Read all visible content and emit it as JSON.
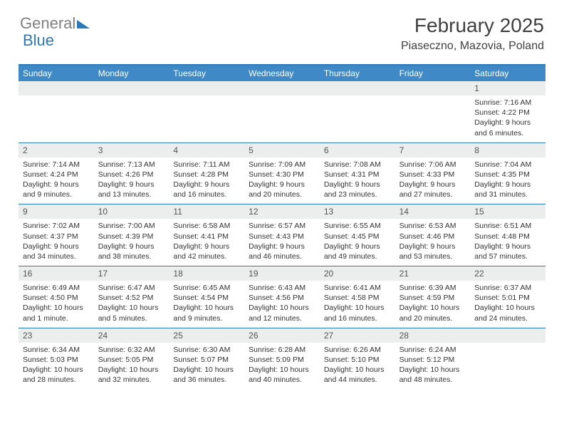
{
  "brand": {
    "part1": "General",
    "part2": "Blue"
  },
  "title": "February 2025",
  "location": "Piaseczno, Mazovia, Poland",
  "colors": {
    "header_bg": "#3f8ac6",
    "border": "#2a7ab9",
    "daynum_bg": "#eceded",
    "text": "#333333",
    "title_text": "#404040",
    "logo_gray": "#808080"
  },
  "day_headers": [
    "Sunday",
    "Monday",
    "Tuesday",
    "Wednesday",
    "Thursday",
    "Friday",
    "Saturday"
  ],
  "weeks": [
    [
      {
        "n": "",
        "t": ""
      },
      {
        "n": "",
        "t": ""
      },
      {
        "n": "",
        "t": ""
      },
      {
        "n": "",
        "t": ""
      },
      {
        "n": "",
        "t": ""
      },
      {
        "n": "",
        "t": ""
      },
      {
        "n": "1",
        "t": "Sunrise: 7:16 AM\nSunset: 4:22 PM\nDaylight: 9 hours and 6 minutes."
      }
    ],
    [
      {
        "n": "2",
        "t": "Sunrise: 7:14 AM\nSunset: 4:24 PM\nDaylight: 9 hours and 9 minutes."
      },
      {
        "n": "3",
        "t": "Sunrise: 7:13 AM\nSunset: 4:26 PM\nDaylight: 9 hours and 13 minutes."
      },
      {
        "n": "4",
        "t": "Sunrise: 7:11 AM\nSunset: 4:28 PM\nDaylight: 9 hours and 16 minutes."
      },
      {
        "n": "5",
        "t": "Sunrise: 7:09 AM\nSunset: 4:30 PM\nDaylight: 9 hours and 20 minutes."
      },
      {
        "n": "6",
        "t": "Sunrise: 7:08 AM\nSunset: 4:31 PM\nDaylight: 9 hours and 23 minutes."
      },
      {
        "n": "7",
        "t": "Sunrise: 7:06 AM\nSunset: 4:33 PM\nDaylight: 9 hours and 27 minutes."
      },
      {
        "n": "8",
        "t": "Sunrise: 7:04 AM\nSunset: 4:35 PM\nDaylight: 9 hours and 31 minutes."
      }
    ],
    [
      {
        "n": "9",
        "t": "Sunrise: 7:02 AM\nSunset: 4:37 PM\nDaylight: 9 hours and 34 minutes."
      },
      {
        "n": "10",
        "t": "Sunrise: 7:00 AM\nSunset: 4:39 PM\nDaylight: 9 hours and 38 minutes."
      },
      {
        "n": "11",
        "t": "Sunrise: 6:58 AM\nSunset: 4:41 PM\nDaylight: 9 hours and 42 minutes."
      },
      {
        "n": "12",
        "t": "Sunrise: 6:57 AM\nSunset: 4:43 PM\nDaylight: 9 hours and 46 minutes."
      },
      {
        "n": "13",
        "t": "Sunrise: 6:55 AM\nSunset: 4:45 PM\nDaylight: 9 hours and 49 minutes."
      },
      {
        "n": "14",
        "t": "Sunrise: 6:53 AM\nSunset: 4:46 PM\nDaylight: 9 hours and 53 minutes."
      },
      {
        "n": "15",
        "t": "Sunrise: 6:51 AM\nSunset: 4:48 PM\nDaylight: 9 hours and 57 minutes."
      }
    ],
    [
      {
        "n": "16",
        "t": "Sunrise: 6:49 AM\nSunset: 4:50 PM\nDaylight: 10 hours and 1 minute."
      },
      {
        "n": "17",
        "t": "Sunrise: 6:47 AM\nSunset: 4:52 PM\nDaylight: 10 hours and 5 minutes."
      },
      {
        "n": "18",
        "t": "Sunrise: 6:45 AM\nSunset: 4:54 PM\nDaylight: 10 hours and 9 minutes."
      },
      {
        "n": "19",
        "t": "Sunrise: 6:43 AM\nSunset: 4:56 PM\nDaylight: 10 hours and 12 minutes."
      },
      {
        "n": "20",
        "t": "Sunrise: 6:41 AM\nSunset: 4:58 PM\nDaylight: 10 hours and 16 minutes."
      },
      {
        "n": "21",
        "t": "Sunrise: 6:39 AM\nSunset: 4:59 PM\nDaylight: 10 hours and 20 minutes."
      },
      {
        "n": "22",
        "t": "Sunrise: 6:37 AM\nSunset: 5:01 PM\nDaylight: 10 hours and 24 minutes."
      }
    ],
    [
      {
        "n": "23",
        "t": "Sunrise: 6:34 AM\nSunset: 5:03 PM\nDaylight: 10 hours and 28 minutes."
      },
      {
        "n": "24",
        "t": "Sunrise: 6:32 AM\nSunset: 5:05 PM\nDaylight: 10 hours and 32 minutes."
      },
      {
        "n": "25",
        "t": "Sunrise: 6:30 AM\nSunset: 5:07 PM\nDaylight: 10 hours and 36 minutes."
      },
      {
        "n": "26",
        "t": "Sunrise: 6:28 AM\nSunset: 5:09 PM\nDaylight: 10 hours and 40 minutes."
      },
      {
        "n": "27",
        "t": "Sunrise: 6:26 AM\nSunset: 5:10 PM\nDaylight: 10 hours and 44 minutes."
      },
      {
        "n": "28",
        "t": "Sunrise: 6:24 AM\nSunset: 5:12 PM\nDaylight: 10 hours and 48 minutes."
      },
      {
        "n": "",
        "t": ""
      }
    ]
  ]
}
